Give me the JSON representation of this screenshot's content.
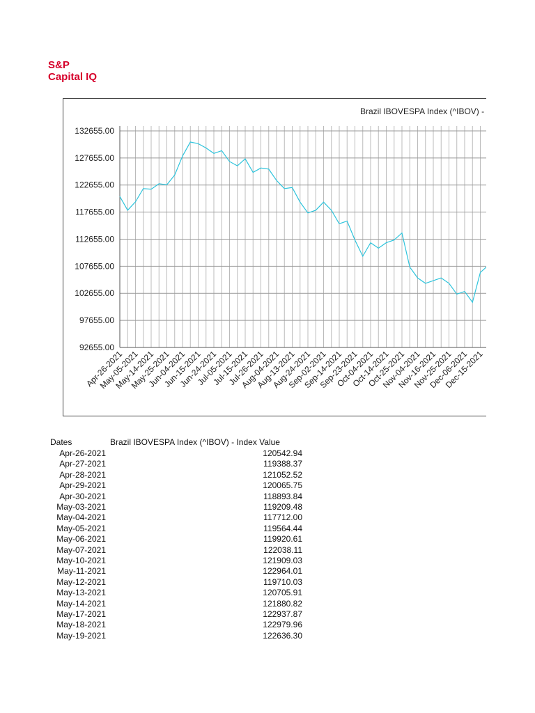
{
  "header": {
    "brand_line1": "S&P",
    "brand_line2": "Capital IQ"
  },
  "chart_data": {
    "type": "line",
    "title": "Brazil IBOVESPA Index (^IBOV) - Index Value",
    "x": [
      "Apr-26-2021",
      null,
      "May-05-2021",
      null,
      "May-14-2021",
      null,
      "May-25-2021",
      null,
      "Jun-04-2021",
      null,
      "Jun-15-2021",
      null,
      "Jun-24-2021",
      null,
      "Jul-05-2021",
      null,
      "Jul-15-2021",
      null,
      "Jul-26-2021",
      null,
      "Aug-04-2021",
      null,
      "Aug-13-2021",
      null,
      "Aug-24-2021",
      null,
      "Sep-02-2021",
      null,
      "Sep-14-2021",
      null,
      "Sep-23-2021",
      null,
      "Oct-04-2021",
      null,
      "Oct-14-2021",
      null,
      "Oct-25-2021",
      null,
      "Nov-04-2021",
      null,
      "Nov-16-2021",
      null,
      "Nov-25-2021",
      null,
      "Dec-06-2021",
      null,
      "Dec-15-2021",
      null
    ],
    "values": [
      120543,
      118000,
      119564,
      122000,
      121881,
      122900,
      122700,
      124500,
      128000,
      130600,
      130300,
      129500,
      128500,
      129000,
      127000,
      126200,
      127500,
      125000,
      125800,
      125600,
      123500,
      122000,
      122200,
      119500,
      117500,
      118000,
      119500,
      118000,
      115500,
      116000,
      112500,
      109500,
      112000,
      111000,
      112000,
      112500,
      113800,
      107500,
      105500,
      104500,
      105000,
      105500,
      104500,
      102500,
      103000,
      101000,
      106500,
      107800
    ],
    "color": "#2ec4dc",
    "ylim": [
      92655,
      133555
    ],
    "yticks": [
      {
        "value": 92655,
        "label": "92655.00"
      },
      {
        "value": 97655,
        "label": "97655.00"
      },
      {
        "value": 102655,
        "label": "102655.00"
      },
      {
        "value": 107655,
        "label": "107655.00"
      },
      {
        "value": 112655,
        "label": "112655.00"
      },
      {
        "value": 117655,
        "label": "117655.00"
      },
      {
        "value": 122655,
        "label": "122655.00"
      },
      {
        "value": 127655,
        "label": "127655.00"
      },
      {
        "value": 132655,
        "label": "132655.00"
      }
    ],
    "grid": true
  },
  "table": {
    "header": [
      "Dates",
      "Brazil IBOVESPA Index (^IBOV) - Index Value"
    ],
    "rows": [
      [
        "Apr-26-2021",
        "120542.94"
      ],
      [
        "Apr-27-2021",
        "119388.37"
      ],
      [
        "Apr-28-2021",
        "121052.52"
      ],
      [
        "Apr-29-2021",
        "120065.75"
      ],
      [
        "Apr-30-2021",
        "118893.84"
      ],
      [
        "May-03-2021",
        "119209.48"
      ],
      [
        "May-04-2021",
        "117712.00"
      ],
      [
        "May-05-2021",
        "119564.44"
      ],
      [
        "May-06-2021",
        "119920.61"
      ],
      [
        "May-07-2021",
        "122038.11"
      ],
      [
        "May-10-2021",
        "121909.03"
      ],
      [
        "May-11-2021",
        "122964.01"
      ],
      [
        "May-12-2021",
        "119710.03"
      ],
      [
        "May-13-2021",
        "120705.91"
      ],
      [
        "May-14-2021",
        "121880.82"
      ],
      [
        "May-17-2021",
        "122937.87"
      ],
      [
        "May-18-2021",
        "122979.96"
      ],
      [
        "May-19-2021",
        "122636.30"
      ]
    ]
  }
}
